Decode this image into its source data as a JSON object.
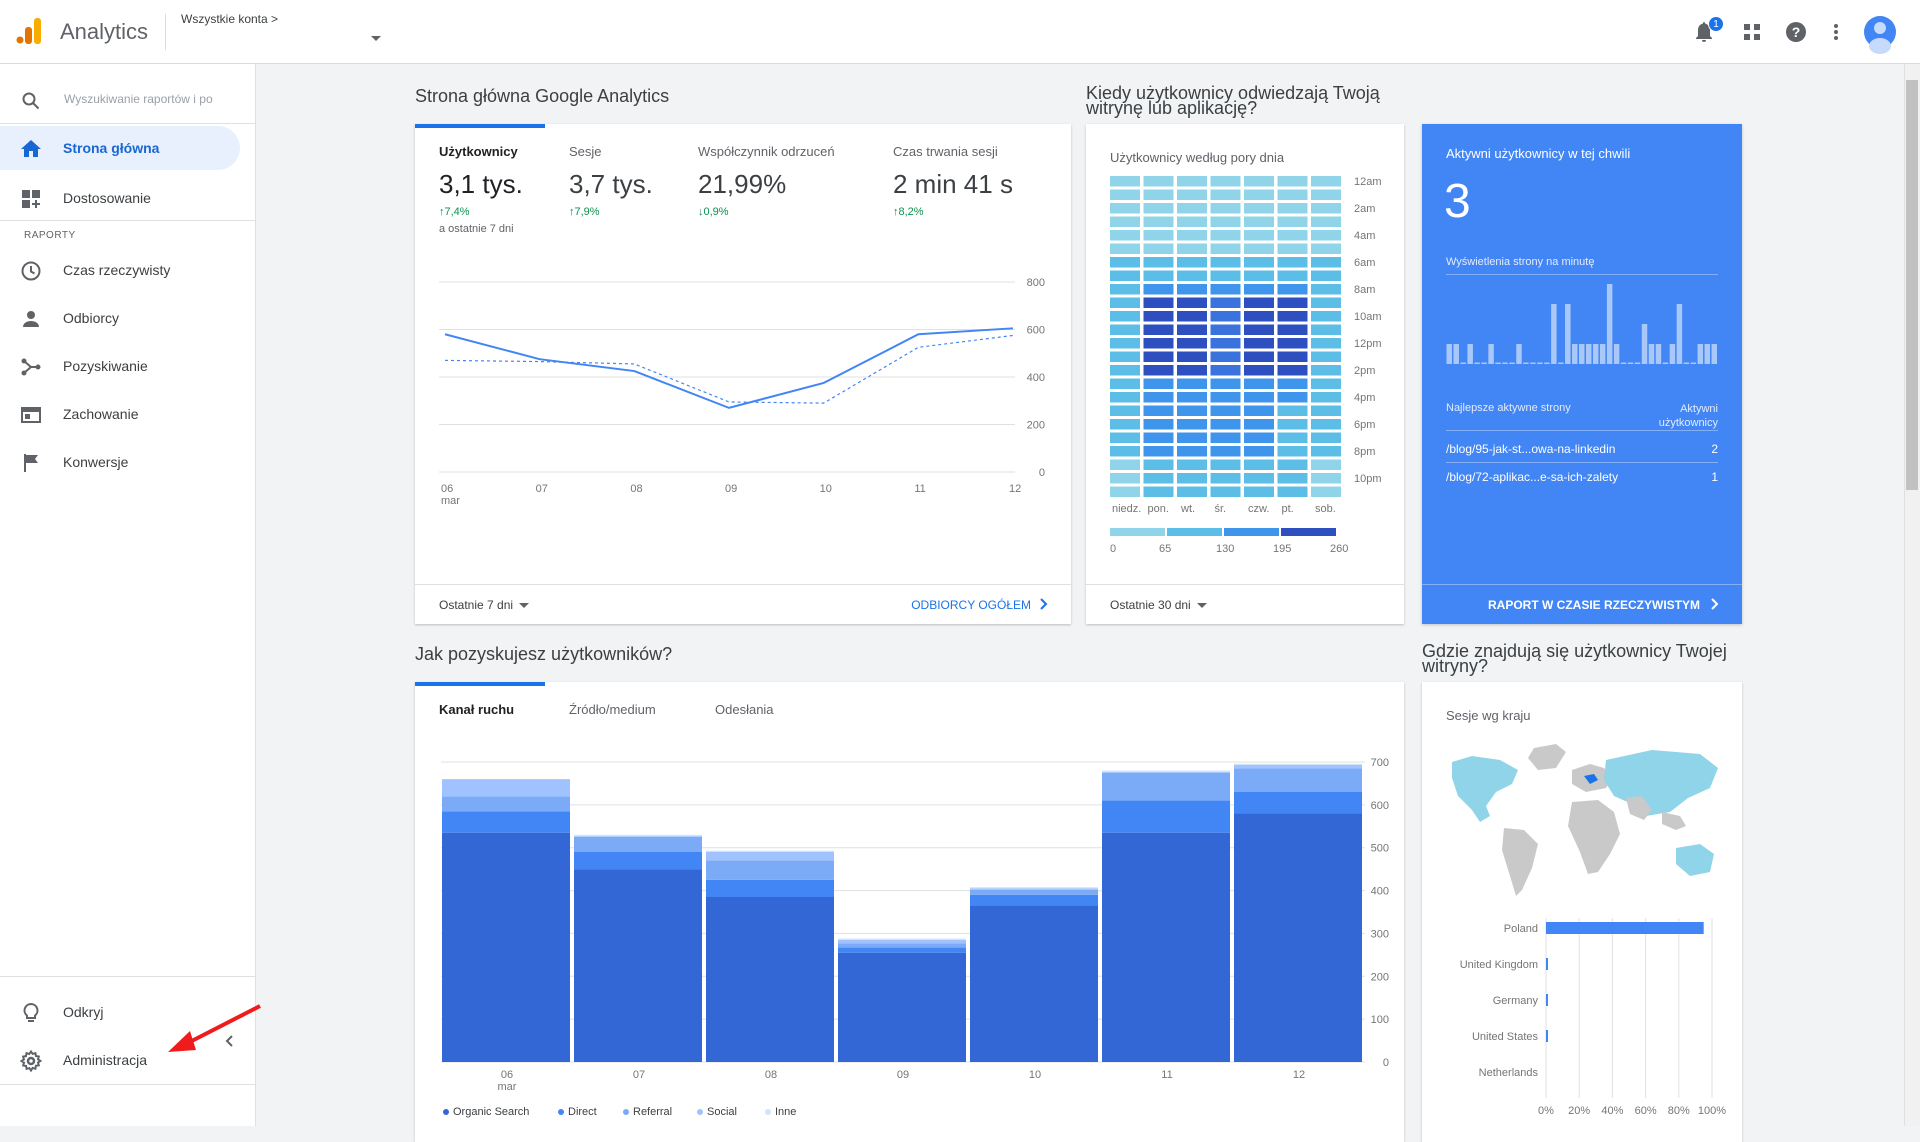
{
  "app": {
    "name": "Analytics",
    "account_label": "Wszystkie konta",
    "account_sep": ">"
  },
  "topbar": {
    "notification_count": "1"
  },
  "sidebar": {
    "search_placeholder": "Wyszukiwanie raportów i po",
    "items_top": [
      {
        "label": "Strona główna",
        "icon": "home-icon",
        "active": true
      },
      {
        "label": "Dostosowanie",
        "icon": "dashboard-customize-icon",
        "active": false
      }
    ],
    "section_label": "RAPORTY",
    "reports": [
      {
        "label": "Czas rzeczywisty",
        "icon": "clock-icon"
      },
      {
        "label": "Odbiorcy",
        "icon": "person-icon"
      },
      {
        "label": "Pozyskiwanie",
        "icon": "acquisition-icon"
      },
      {
        "label": "Zachowanie",
        "icon": "behavior-icon"
      },
      {
        "label": "Konwersje",
        "icon": "flag-icon"
      }
    ],
    "bottom": [
      {
        "label": "Odkryj",
        "icon": "lightbulb-icon"
      },
      {
        "label": "Administracja",
        "icon": "gear-icon"
      }
    ]
  },
  "home": {
    "title": "Strona główna Google Analytics",
    "metrics": [
      {
        "label": "Użytkownicy",
        "value": "3,1 tys.",
        "delta": "↑7,4%",
        "sub": "a ostatnie 7 dni"
      },
      {
        "label": "Sesje",
        "value": "3,7 tys.",
        "delta": "↑7,9%",
        "sub": ""
      },
      {
        "label": "Współczynnik odrzuceń",
        "value": "21,99%",
        "delta": "↓0,9%",
        "sub": ""
      },
      {
        "label": "Czas trwania sesji",
        "value": "2 min 41 s",
        "delta": "↑8,2%",
        "sub": ""
      }
    ],
    "footer_range": "Ostatnie 7 dni",
    "footer_link": "ODBIORCY OGÓŁEM"
  },
  "when": {
    "title": "Kiedy użytkownicy odwiedzają Twoją witrynę lub aplikację?",
    "subtitle": "Użytkownicy według pory dnia",
    "day_labels": [
      "niedz.",
      "pon.",
      "wt.",
      "śr.",
      "czw.",
      "pt.",
      "sob."
    ],
    "hour_labels": [
      "12am",
      "2am",
      "4am",
      "6am",
      "8am",
      "10am",
      "12pm",
      "2pm",
      "4pm",
      "6pm",
      "8pm",
      "10pm"
    ],
    "scale_labels": [
      "0",
      "65",
      "130",
      "195",
      "260"
    ],
    "footer_range": "Ostatnie 30 dni"
  },
  "realtime": {
    "title": "Aktywni użytkownicy w tej chwili",
    "count": "3",
    "views_label": "Wyświetlenia strony na minutę",
    "views_per_minute": [
      1,
      1,
      0,
      1,
      0,
      0,
      1,
      0,
      0,
      0,
      1,
      0,
      0,
      0,
      0,
      3,
      0,
      3,
      1,
      1,
      1,
      1,
      1,
      4,
      1,
      0,
      0,
      0,
      2,
      1,
      1,
      0,
      1,
      3,
      0,
      0,
      1,
      1,
      1
    ],
    "pages_header": "Najlepsze aktywne strony",
    "users_header": "Aktywni użytkownicy",
    "pages": [
      {
        "path": "/blog/95-jak-st...owa-na-linkedin",
        "users": "2"
      },
      {
        "path": "/blog/72-aplikac...e-sa-ich-zalety",
        "users": "1"
      }
    ],
    "footer_link": "RAPORT W CZASIE RZECZYWISTYM"
  },
  "acquisition": {
    "title": "Jak pozyskujesz użytkowników?",
    "tabs": [
      "Kanał ruchu",
      "Źródło/medium",
      "Odesłania"
    ],
    "legend_colors": [
      "#3367d6",
      "#4285f4",
      "#7baaf7",
      "#a0c3ff",
      "#d2e3fc"
    ]
  },
  "geo": {
    "title": "Gdzie znajdują się użytkownicy Twojej witryny?",
    "subtitle": "Sesje wg kraju",
    "countries": [
      {
        "name": "Poland",
        "pct": 95
      },
      {
        "name": "United Kingdom",
        "pct": 1
      },
      {
        "name": "Germany",
        "pct": 1
      },
      {
        "name": "United States",
        "pct": 1
      },
      {
        "name": "Netherlands",
        "pct": 0
      }
    ],
    "x_ticks": [
      "0%",
      "20%",
      "40%",
      "60%",
      "80%",
      "100%"
    ]
  },
  "chart_data": [
    {
      "type": "line",
      "x": [
        "06",
        "07",
        "08",
        "09",
        "10",
        "11",
        "12"
      ],
      "x_sublabel": "mar",
      "ylim": [
        0,
        800
      ],
      "y_ticks": [
        "0",
        "200",
        "400",
        "600",
        "800"
      ],
      "series": [
        {
          "values": [
            580,
            475,
            425,
            270,
            375,
            580,
            605
          ]
        },
        {
          "values": [
            470,
            465,
            455,
            295,
            290,
            525,
            575
          ]
        }
      ]
    },
    {
      "type": "bar",
      "categories": [
        "06",
        "07",
        "08",
        "09",
        "10",
        "11",
        "12"
      ],
      "x_sublabel": "mar",
      "ylim": [
        0,
        700
      ],
      "y_ticks": [
        "0",
        "100",
        "200",
        "300",
        "400",
        "500",
        "600",
        "700"
      ],
      "series": [
        {
          "name": "Organic Search",
          "values": [
            535,
            450,
            385,
            255,
            365,
            535,
            580
          ]
        },
        {
          "name": "Direct",
          "values": [
            50,
            40,
            40,
            12,
            25,
            75,
            50
          ]
        },
        {
          "name": "Referral",
          "values": [
            35,
            35,
            45,
            10,
            12,
            65,
            55
          ]
        },
        {
          "name": "Social",
          "values": [
            40,
            2,
            20,
            8,
            3,
            2,
            8
          ]
        },
        {
          "name": "Inne",
          "values": [
            0,
            3,
            3,
            3,
            3,
            3,
            3
          ]
        }
      ]
    },
    {
      "type": "heatmap",
      "days": [
        "niedz.",
        "pon.",
        "wt.",
        "śr.",
        "czw.",
        "pt.",
        "sob."
      ],
      "hours": 24,
      "scale": [
        0,
        65,
        130,
        195,
        260
      ]
    },
    {
      "type": "bar",
      "orientation": "horizontal",
      "categories": [
        "Poland",
        "United Kingdom",
        "Germany",
        "United States",
        "Netherlands"
      ],
      "values": [
        95,
        1,
        1,
        1,
        0
      ],
      "x_ticks": [
        "0%",
        "20%",
        "40%",
        "60%",
        "80%",
        "100%"
      ]
    }
  ]
}
